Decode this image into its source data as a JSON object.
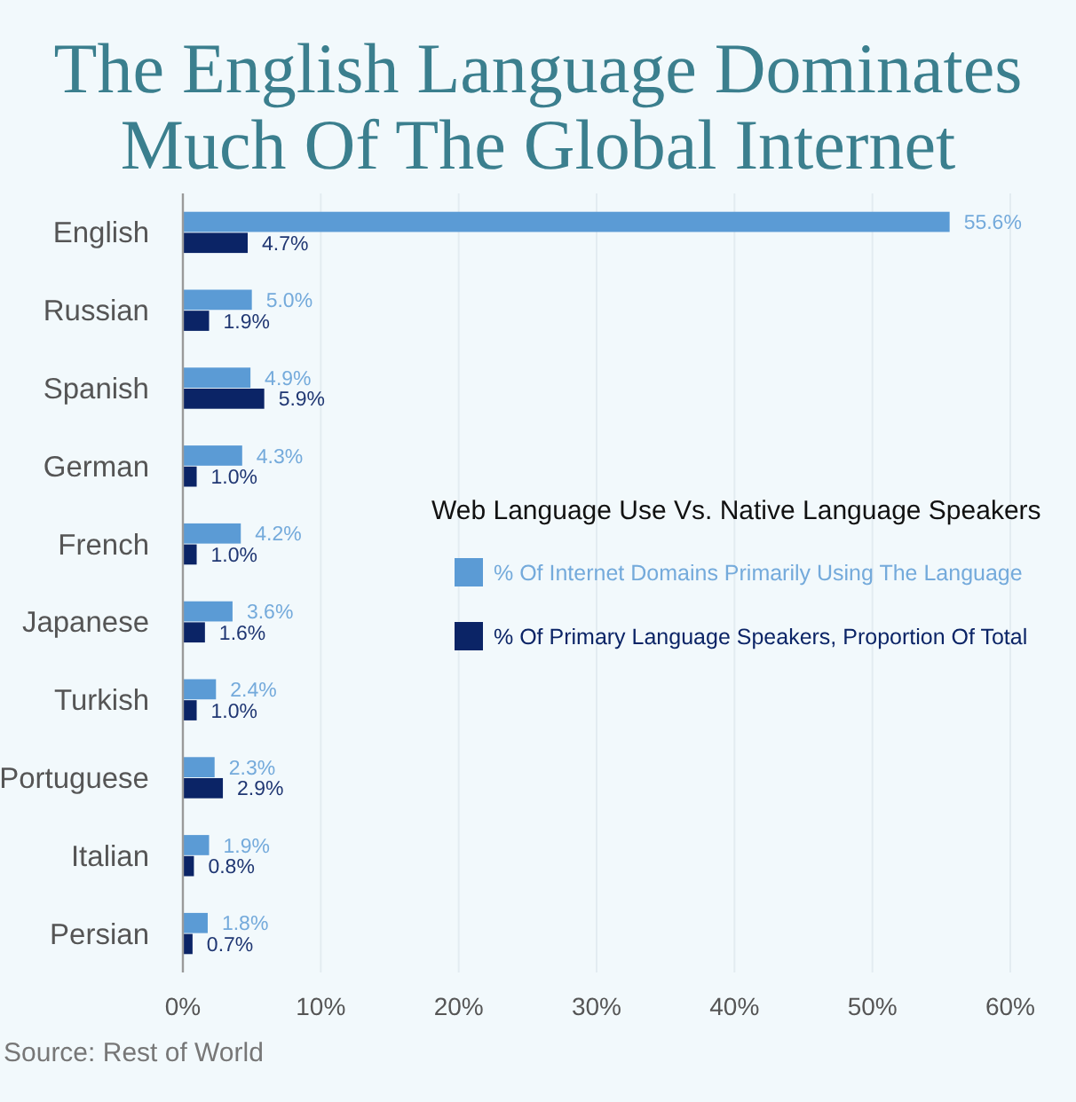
{
  "chart_data": {
    "type": "bar",
    "orientation": "horizontal",
    "title": "The English Language Dominates Much Of The Global Internet",
    "categories": [
      "English",
      "Russian",
      "Spanish",
      "German",
      "French",
      "Japanese",
      "Turkish",
      "Portuguese",
      "Italian",
      "Persian"
    ],
    "series": [
      {
        "name": "% Of Internet Domains Primarily Using The Language",
        "color": "#5b9bd5",
        "values": [
          55.6,
          5.0,
          4.9,
          4.3,
          4.2,
          3.6,
          2.4,
          2.3,
          1.9,
          1.8
        ],
        "value_labels": [
          "55.6%",
          "5.0%",
          "4.9%",
          "4.3%",
          "4.2%",
          "3.6%",
          "2.4%",
          "2.3%",
          "1.9%",
          "1.8%"
        ]
      },
      {
        "name": "% Of Primary Language Speakers, Proportion Of Total",
        "color": "#0b2466",
        "values": [
          4.7,
          1.9,
          5.9,
          1.0,
          1.0,
          1.6,
          1.0,
          2.9,
          0.8,
          0.7
        ],
        "value_labels": [
          "4.7%",
          "1.9%",
          "5.9%",
          "1.0%",
          "1.0%",
          "1.6%",
          "1.0%",
          "2.9%",
          "0.8%",
          "0.7%"
        ]
      }
    ],
    "xlim": [
      0,
      60
    ],
    "xticks": [
      {
        "value": 0,
        "label": "0%"
      },
      {
        "value": 10,
        "label": "10%"
      },
      {
        "value": 20,
        "label": "20%"
      },
      {
        "value": 30,
        "label": "30%"
      },
      {
        "value": 40,
        "label": "40%"
      },
      {
        "value": 50,
        "label": "50%"
      },
      {
        "value": 60,
        "label": "60%"
      }
    ],
    "grid": "x",
    "legend": "right",
    "legend_title": "Web Language Use Vs. Native Language Speakers",
    "annotations": [
      "Source: Rest of World"
    ]
  }
}
